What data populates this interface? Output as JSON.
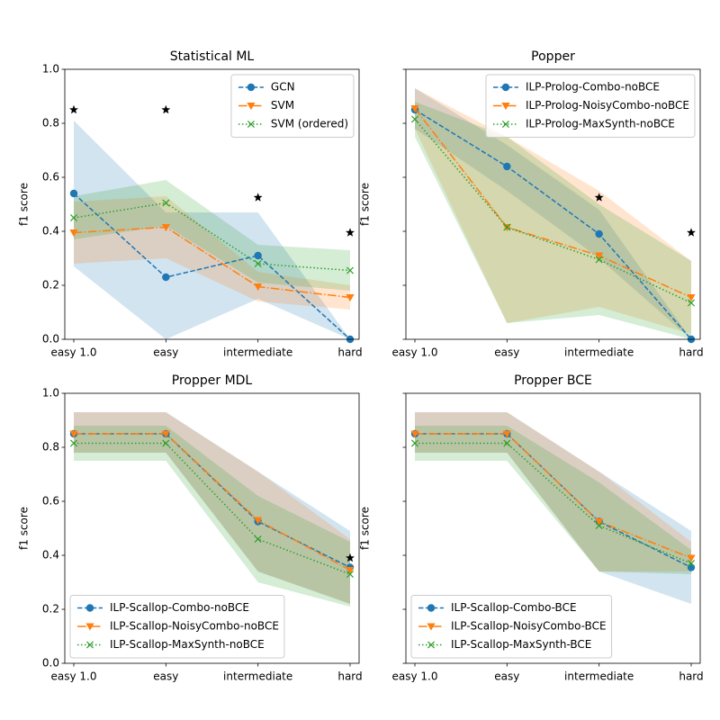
{
  "chart_data": [
    {
      "type": "line",
      "title": "Statistical ML",
      "ylabel": "f1 score",
      "categories": [
        "easy 1.0",
        "easy",
        "intermediate",
        "hard"
      ],
      "ylim": [
        0,
        1
      ],
      "yticks": [
        {
          "value": 0,
          "label": "0.0"
        },
        {
          "value": 0.2,
          "label": "0.2"
        },
        {
          "value": 0.4,
          "label": "0.4"
        },
        {
          "value": 0.6,
          "label": "0.6"
        },
        {
          "value": 0.8,
          "label": "0.8"
        },
        {
          "value": 1,
          "label": "1.0"
        }
      ],
      "legend": "upper right",
      "series": [
        {
          "name": "GCN",
          "color": "#1f77b4",
          "linestyle": "dashed",
          "marker": "circle",
          "values": [
            0.54,
            0.23,
            0.31,
            0.0
          ],
          "lower": [
            0.27,
            0.0,
            0.15,
            0.0
          ],
          "upper": [
            0.81,
            0.47,
            0.47,
            0.0
          ]
        },
        {
          "name": "SVM",
          "color": "#ff7f0e",
          "linestyle": "dashdot",
          "marker": "triangle-down",
          "values": [
            0.395,
            0.415,
            0.195,
            0.155
          ],
          "lower": [
            0.28,
            0.3,
            0.14,
            0.11
          ],
          "upper": [
            0.51,
            0.53,
            0.25,
            0.2
          ]
        },
        {
          "name": "SVM (ordered)",
          "color": "#2ca02c",
          "linestyle": "dotted",
          "marker": "x",
          "values": [
            0.45,
            0.505,
            0.28,
            0.255
          ],
          "lower": [
            0.37,
            0.42,
            0.21,
            0.18
          ],
          "upper": [
            0.53,
            0.59,
            0.35,
            0.33
          ]
        }
      ],
      "stars": [
        0.85,
        0.85,
        0.525,
        0.395
      ]
    },
    {
      "type": "line",
      "title": "Popper",
      "ylabel": "f1 score",
      "categories": [
        "easy 1.0",
        "easy",
        "intermediate",
        "hard"
      ],
      "ylim": [
        0,
        1
      ],
      "legend": "upper right",
      "series": [
        {
          "name": "ILP-Prolog-Combo-noBCE",
          "color": "#1f77b4",
          "linestyle": "dashed",
          "marker": "circle",
          "values": [
            0.85,
            0.64,
            0.39,
            0.0
          ],
          "lower": [
            0.78,
            0.55,
            0.3,
            0.0
          ],
          "upper": [
            0.93,
            0.72,
            0.48,
            0.0
          ]
        },
        {
          "name": "ILP-Prolog-NoisyCombo-noBCE",
          "color": "#ff7f0e",
          "linestyle": "dashdot",
          "marker": "triangle-down",
          "values": [
            0.855,
            0.415,
            0.31,
            0.155
          ],
          "lower": [
            0.78,
            0.06,
            0.12,
            0.02
          ],
          "upper": [
            0.93,
            0.75,
            0.55,
            0.29
          ]
        },
        {
          "name": "ILP-Prolog-MaxSynth-noBCE",
          "color": "#2ca02c",
          "linestyle": "dotted",
          "marker": "x",
          "values": [
            0.815,
            0.415,
            0.295,
            0.135
          ],
          "lower": [
            0.75,
            0.06,
            0.09,
            0.0
          ],
          "upper": [
            0.88,
            0.75,
            0.5,
            0.29
          ]
        }
      ],
      "stars": [
        null,
        null,
        0.525,
        0.395
      ]
    },
    {
      "type": "line",
      "title": "Propper MDL",
      "ylabel": "f1 score",
      "categories": [
        "easy 1.0",
        "easy",
        "intermediate",
        "hard"
      ],
      "ylim": [
        0,
        1
      ],
      "yticks": [
        {
          "value": 0,
          "label": "0.0"
        },
        {
          "value": 0.2,
          "label": "0.2"
        },
        {
          "value": 0.4,
          "label": "0.4"
        },
        {
          "value": 0.6,
          "label": "0.6"
        },
        {
          "value": 0.8,
          "label": "0.8"
        },
        {
          "value": 1,
          "label": "1.0"
        }
      ],
      "legend": "lower left",
      "series": [
        {
          "name": "ILP-Scallop-Combo-noBCE",
          "color": "#1f77b4",
          "linestyle": "dashed",
          "marker": "circle",
          "values": [
            0.85,
            0.85,
            0.525,
            0.355
          ],
          "lower": [
            0.78,
            0.78,
            0.34,
            0.22
          ],
          "upper": [
            0.93,
            0.93,
            0.71,
            0.49
          ]
        },
        {
          "name": "ILP-Scallop-NoisyCombo-noBCE",
          "color": "#ff7f0e",
          "linestyle": "dashdot",
          "marker": "triangle-down",
          "values": [
            0.85,
            0.85,
            0.53,
            0.345
          ],
          "lower": [
            0.78,
            0.78,
            0.34,
            0.22
          ],
          "upper": [
            0.93,
            0.93,
            0.71,
            0.46
          ]
        },
        {
          "name": "ILP-Scallop-MaxSynth-noBCE",
          "color": "#2ca02c",
          "linestyle": "dotted",
          "marker": "x",
          "values": [
            0.815,
            0.815,
            0.46,
            0.33
          ],
          "lower": [
            0.75,
            0.75,
            0.3,
            0.21
          ],
          "upper": [
            0.88,
            0.88,
            0.62,
            0.45
          ]
        }
      ],
      "stars": [
        null,
        null,
        null,
        0.39
      ]
    },
    {
      "type": "line",
      "title": "Propper BCE",
      "ylabel": "f1 score",
      "categories": [
        "easy 1.0",
        "easy",
        "intermediate",
        "hard"
      ],
      "ylim": [
        0,
        1
      ],
      "legend": "lower left",
      "series": [
        {
          "name": "ILP-Scallop-Combo-BCE",
          "color": "#1f77b4",
          "linestyle": "dashed",
          "marker": "circle",
          "values": [
            0.85,
            0.85,
            0.525,
            0.355
          ],
          "lower": [
            0.78,
            0.78,
            0.34,
            0.22
          ],
          "upper": [
            0.93,
            0.93,
            0.71,
            0.49
          ]
        },
        {
          "name": "ILP-Scallop-NoisyCombo-BCE",
          "color": "#ff7f0e",
          "linestyle": "dashdot",
          "marker": "triangle-down",
          "values": [
            0.85,
            0.85,
            0.525,
            0.39
          ],
          "lower": [
            0.78,
            0.78,
            0.34,
            0.34
          ],
          "upper": [
            0.93,
            0.93,
            0.71,
            0.45
          ]
        },
        {
          "name": "ILP-Scallop-MaxSynth-BCE",
          "color": "#2ca02c",
          "linestyle": "dotted",
          "marker": "x",
          "values": [
            0.815,
            0.815,
            0.51,
            0.37
          ],
          "lower": [
            0.75,
            0.75,
            0.34,
            0.33
          ],
          "upper": [
            0.88,
            0.88,
            0.67,
            0.42
          ]
        }
      ],
      "stars": [
        null,
        null,
        null,
        null
      ]
    }
  ]
}
